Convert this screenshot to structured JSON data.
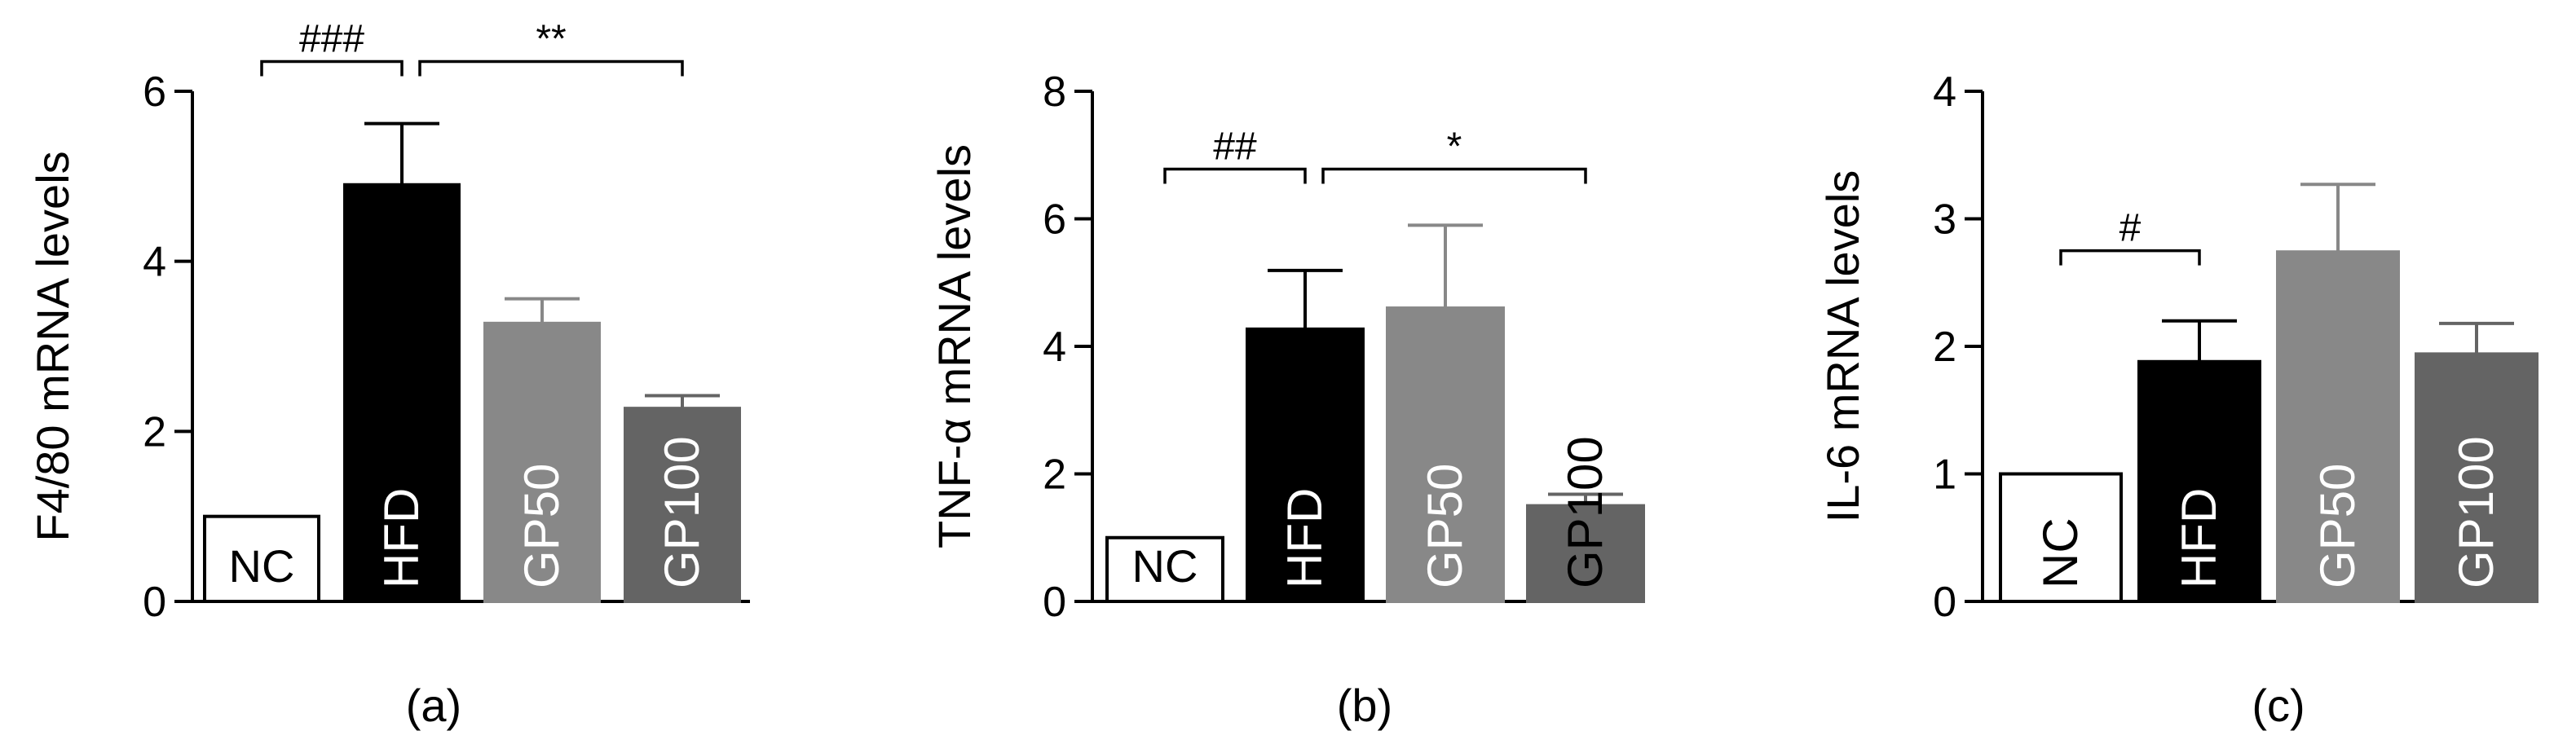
{
  "chart_data": [
    {
      "type": "bar",
      "panel_label": "(a)",
      "ylabel": "F4/80 mRNA levels",
      "ylim": [
        0,
        6
      ],
      "yticks": [
        "0",
        "2",
        "4",
        "6"
      ],
      "categories": [
        "NC",
        "HFD",
        "GP50",
        "GP100"
      ],
      "values": [
        1.0,
        4.9,
        3.27,
        2.27
      ],
      "errors": [
        0.0,
        0.72,
        0.29,
        0.15
      ],
      "colors": [
        "#ffffff",
        "#000000",
        "#888888",
        "#646464"
      ],
      "label_colors": [
        "#000000",
        "#ffffff",
        "#ffffff",
        "#ffffff"
      ],
      "label_rotated": [
        false,
        true,
        true,
        true
      ],
      "significance": [
        {
          "from": 0,
          "to": 1,
          "label": "###",
          "y": 6.35
        },
        {
          "from": 1,
          "to": 3,
          "label": "**",
          "y": 6.35
        }
      ]
    },
    {
      "type": "bar",
      "panel_label": "(b)",
      "ylabel": "TNF-α mRNA levels",
      "ylim": [
        0,
        8
      ],
      "yticks": [
        "0",
        "2",
        "4",
        "6",
        "8"
      ],
      "categories": [
        "NC",
        "HFD",
        "GP50",
        "GP100"
      ],
      "values": [
        1.0,
        4.27,
        4.6,
        1.5
      ],
      "errors": [
        0.0,
        0.92,
        1.3,
        0.18
      ],
      "colors": [
        "#ffffff",
        "#000000",
        "#888888",
        "#646464"
      ],
      "label_colors": [
        "#000000",
        "#ffffff",
        "#ffffff",
        "#000000"
      ],
      "label_rotated": [
        false,
        true,
        true,
        true
      ],
      "significance": [
        {
          "from": 0,
          "to": 1,
          "label": "##",
          "y": 6.78
        },
        {
          "from": 1,
          "to": 3,
          "label": "*",
          "y": 6.78
        }
      ]
    },
    {
      "type": "bar",
      "panel_label": "(c)",
      "ylabel": "IL-6 mRNA levels",
      "ylim": [
        0,
        4
      ],
      "yticks": [
        "0",
        "1",
        "2",
        "3",
        "4"
      ],
      "categories": [
        "NC",
        "HFD",
        "GP50",
        "GP100"
      ],
      "values": [
        1.0,
        1.88,
        2.74,
        1.94
      ],
      "errors": [
        0.0,
        0.32,
        0.53,
        0.24
      ],
      "colors": [
        "#ffffff",
        "#000000",
        "#888888",
        "#646464"
      ],
      "label_colors": [
        "#000000",
        "#ffffff",
        "#ffffff",
        "#ffffff"
      ],
      "label_rotated": [
        true,
        true,
        true,
        true
      ],
      "significance": [
        {
          "from": 0,
          "to": 1,
          "label": "#",
          "y": 2.75
        }
      ]
    }
  ]
}
